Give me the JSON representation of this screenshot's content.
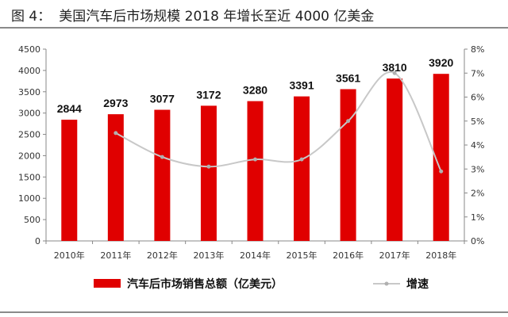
{
  "caption": {
    "figure_no": "图 4：",
    "text": "美国汽车后市场规模 2018 年增长至近 4000 亿美金"
  },
  "chart_data": {
    "type": "bar",
    "categories": [
      "2010年",
      "2011年",
      "2012年",
      "2013年",
      "2014年",
      "2015年",
      "2016年",
      "2017年",
      "2018年"
    ],
    "series": [
      {
        "name": "汽车后市场销售总额（亿美元）",
        "type": "bar",
        "axis": "left",
        "values": [
          2844,
          2973,
          3077,
          3172,
          3280,
          3391,
          3561,
          3810,
          3920
        ],
        "color": "#e00000"
      },
      {
        "name": "增速",
        "type": "line",
        "axis": "right",
        "values": [
          null,
          4.5,
          3.5,
          3.1,
          3.4,
          3.4,
          5.0,
          7.0,
          2.9
        ],
        "color": "#c8c8c8"
      }
    ],
    "ylim": [
      0,
      4500
    ],
    "yticks": [
      "0",
      "500",
      "1000",
      "1500",
      "2000",
      "2500",
      "3000",
      "3500",
      "4000",
      "4500"
    ],
    "y2lim": [
      0,
      8
    ],
    "y2ticks": [
      "0%",
      "1%",
      "2%",
      "3%",
      "4%",
      "5%",
      "6%",
      "7%",
      "8%"
    ],
    "legend": "bottom"
  }
}
